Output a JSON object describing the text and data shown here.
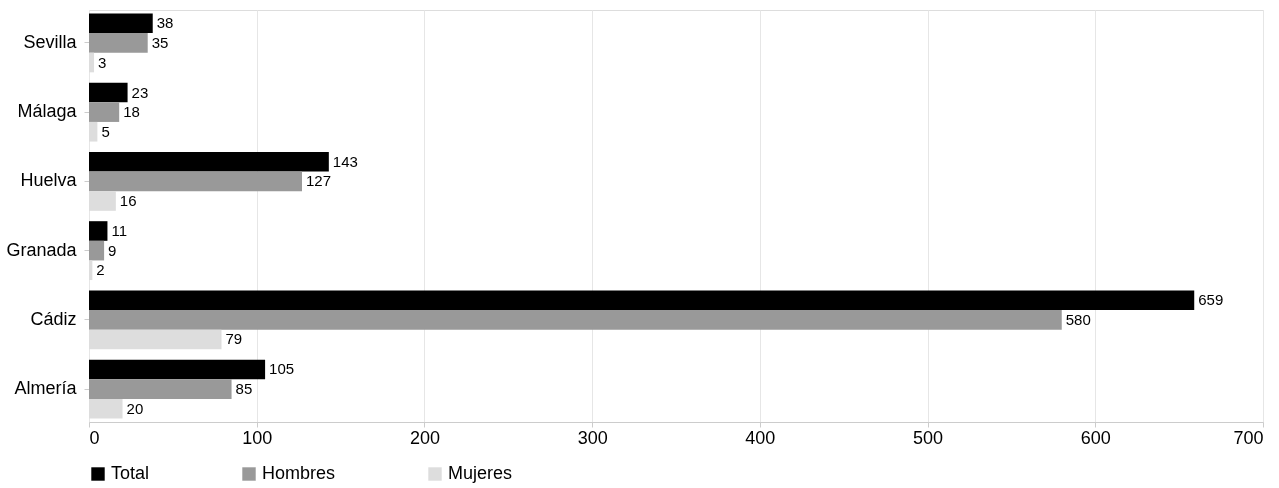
{
  "chart_data": {
    "type": "bar",
    "orientation": "horizontal",
    "categories": [
      "Sevilla",
      "Málaga",
      "Huelva",
      "Granada",
      "Cádiz",
      "Almería"
    ],
    "series": [
      {
        "name": "Total",
        "color": "#000000",
        "values": [
          38,
          23,
          143,
          11,
          659,
          105
        ]
      },
      {
        "name": "Hombres",
        "color": "#999999",
        "values": [
          35,
          18,
          127,
          9,
          580,
          85
        ]
      },
      {
        "name": "Mujeres",
        "color": "#dddddd",
        "values": [
          3,
          5,
          16,
          2,
          79,
          20
        ]
      }
    ],
    "xlim": [
      0,
      700
    ],
    "xticks": [
      0,
      100,
      200,
      300,
      400,
      500,
      600,
      700
    ],
    "grid": "x",
    "legend": "bottom",
    "data_labels": true
  }
}
